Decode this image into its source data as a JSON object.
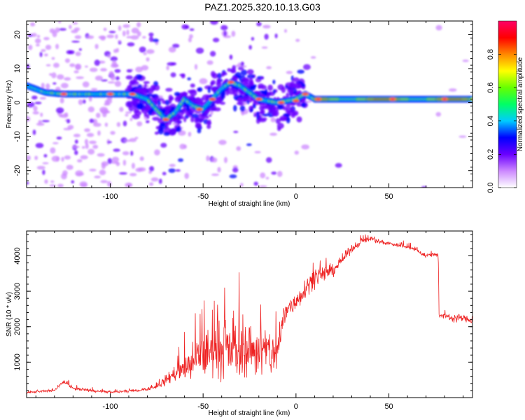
{
  "title": "PAZ1.2025.320.10.13.G03",
  "chart_data": [
    {
      "type": "heatmap",
      "xlabel": "Height of straight line (km)",
      "ylabel": "Frequency (Hz)",
      "xlim": [
        -145,
        95
      ],
      "ylim": [
        -25,
        24
      ],
      "xticks": [
        -100,
        -50,
        0,
        50
      ],
      "yticks": [
        -20,
        -10,
        0,
        10,
        20
      ],
      "colorbar": {
        "label": "Normalized spectral amplitude",
        "range": [
          0,
          1
        ],
        "ticks": [
          "0.0",
          "0.2",
          "0.4",
          "0.6",
          "0.8"
        ],
        "colors": [
          "#ffffff",
          "#cc88ff",
          "#6a00ff",
          "#0000ff",
          "#00ccff",
          "#00ff66",
          "#66ff00",
          "#ffff00",
          "#ff8800",
          "#ff0000",
          "#ff0066"
        ]
      },
      "ridge": {
        "x": [
          -145,
          -135,
          -125,
          -115,
          -100,
          -90,
          -85,
          -80,
          -75,
          -70,
          -65,
          -60,
          -55,
          -50,
          -45,
          -40,
          -35,
          -30,
          -25,
          -20,
          -15,
          -10,
          -5,
          0,
          5,
          10,
          20,
          40,
          60,
          80,
          95
        ],
        "freq": [
          5,
          3,
          2.5,
          2.5,
          2.5,
          2.5,
          2,
          1,
          -2,
          -5,
          -3,
          1,
          -1,
          -2,
          1,
          4,
          6,
          5,
          3,
          1,
          0.5,
          0,
          0.5,
          1,
          2.5,
          1,
          1,
          1,
          1,
          1,
          1
        ]
      }
    },
    {
      "type": "line",
      "xlabel": "Height of straight line (km)",
      "ylabel": "SNR (10 * v/v)",
      "xlim": [
        -145,
        95
      ],
      "ylim": [
        0,
        4700
      ],
      "xticks": [
        -100,
        -50,
        0,
        50
      ],
      "yticks": [
        1000,
        2000,
        3000,
        4000
      ],
      "color": "#ee2222",
      "envelope": {
        "x": [
          -145,
          -130,
          -125,
          -120,
          -100,
          -85,
          -75,
          -70,
          -65,
          -60,
          -55,
          -50,
          -45,
          -40,
          -35,
          -30,
          -25,
          -20,
          -15,
          -10,
          -7,
          -5,
          0,
          5,
          10,
          15,
          20,
          25,
          30,
          35,
          40,
          45,
          50,
          55,
          60,
          65,
          70,
          75,
          76.5,
          77,
          80,
          85,
          90,
          95
        ],
        "mean": [
          150,
          200,
          450,
          250,
          150,
          200,
          300,
          500,
          700,
          800,
          1000,
          1200,
          1300,
          1300,
          1400,
          1300,
          1400,
          1300,
          1300,
          1200,
          2200,
          2500,
          2700,
          3100,
          3400,
          3500,
          3600,
          3900,
          4200,
          4400,
          4500,
          4400,
          4350,
          4300,
          4250,
          4150,
          4000,
          4050,
          4050,
          2300,
          2300,
          2250,
          2250,
          2150
        ],
        "spread": [
          50,
          50,
          80,
          60,
          50,
          50,
          80,
          200,
          300,
          500,
          700,
          900,
          1000,
          1000,
          1100,
          1100,
          1000,
          1000,
          900,
          900,
          500,
          500,
          400,
          400,
          350,
          300,
          250,
          200,
          150,
          120,
          100,
          100,
          80,
          80,
          80,
          80,
          80,
          80,
          80,
          100,
          100,
          150,
          150,
          100
        ]
      }
    }
  ]
}
